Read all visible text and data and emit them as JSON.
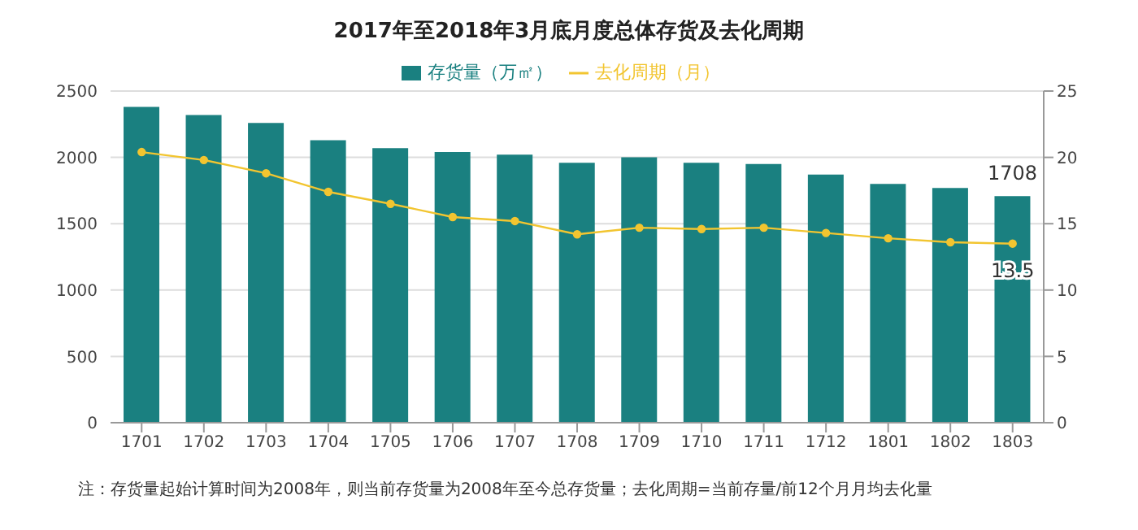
{
  "chart_data": {
    "type": "bar",
    "title": "2017年至2018年3月底月度总体存货及去化周期",
    "categories": [
      "1701",
      "1702",
      "1703",
      "1704",
      "1705",
      "1706",
      "1707",
      "1708",
      "1709",
      "1710",
      "1711",
      "1712",
      "1801",
      "1802",
      "1803"
    ],
    "series": [
      {
        "name": "存货量（万㎡）",
        "color": "#1a8080",
        "values": [
          2380,
          2320,
          2260,
          2130,
          2070,
          2040,
          2020,
          1960,
          2000,
          1960,
          1950,
          1870,
          1800,
          1770,
          1708
        ],
        "value_labels": [
          null,
          null,
          null,
          null,
          null,
          null,
          null,
          null,
          null,
          null,
          null,
          null,
          null,
          null,
          "1708"
        ]
      },
      {
        "name": "去化周期（月）",
        "type": "line",
        "axis": "y2",
        "color": "#f2c530",
        "marker": "circle",
        "values": [
          20.4,
          19.8,
          18.8,
          17.4,
          16.5,
          15.5,
          15.2,
          14.2,
          14.7,
          14.6,
          14.7,
          14.3,
          13.9,
          13.6,
          13.5
        ],
        "value_labels": [
          null,
          null,
          null,
          null,
          null,
          null,
          null,
          null,
          null,
          null,
          null,
          null,
          null,
          null,
          "13.5"
        ]
      }
    ],
    "ylim": [
      0,
      2500
    ],
    "yticks": [
      0,
      500,
      1000,
      1500,
      2000,
      2500
    ],
    "y2lim": [
      0,
      25
    ],
    "y2ticks": [
      0,
      5,
      10,
      15,
      20,
      25
    ],
    "grid": "y",
    "legend": "top",
    "annotations": [
      "注：存货量起始计算时间为2008年，则当前存货量为2008年至今总存货量；去化周期=当前存量/前12个月月均去化量"
    ]
  }
}
